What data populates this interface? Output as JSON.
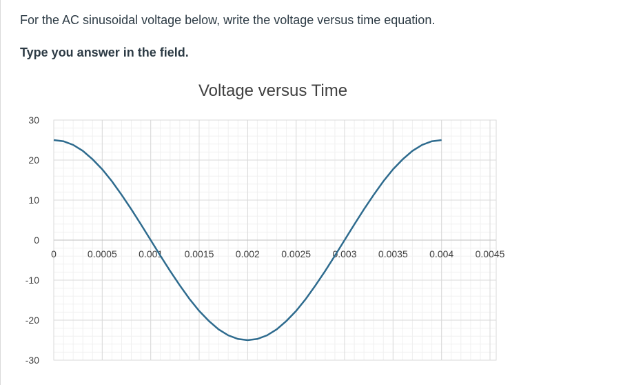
{
  "question": {
    "text": "For the AC sinusoidal voltage below, write the voltage versus time equation.",
    "instruction": "Type you answer in the field."
  },
  "chart_data": {
    "type": "line",
    "title": "Voltage versus Time",
    "xlabel": "",
    "ylabel": "",
    "xlim": [
      0,
      0.0045
    ],
    "ylim": [
      -30,
      30
    ],
    "x_ticks": [
      0,
      0.0005,
      0.001,
      0.0015,
      0.002,
      0.0025,
      0.003,
      0.0035,
      0.004,
      0.0045
    ],
    "x_tick_labels": [
      "0",
      "0.0005",
      "0.001",
      "0.0015",
      "0.002",
      "0.0025",
      "0.003",
      "0.0035",
      "0.004",
      "0.0045"
    ],
    "y_ticks": [
      30,
      20,
      10,
      0,
      -10,
      -20,
      -30
    ],
    "y_tick_labels": [
      "30",
      "20",
      "10",
      "0",
      "-10",
      "-20",
      "-30"
    ],
    "grid": true,
    "line_color": "#2e6b8e",
    "series": [
      {
        "x": [
          0,
          0.0001,
          0.0002,
          0.0003,
          0.0004,
          0.0005,
          0.0006,
          0.0007,
          0.0008,
          0.0009,
          0.001,
          0.0011,
          0.0012,
          0.0013,
          0.0014,
          0.0015,
          0.0016,
          0.0017,
          0.0018,
          0.0019,
          0.002,
          0.0021,
          0.0022,
          0.0023,
          0.0024,
          0.0025,
          0.0026,
          0.0027,
          0.0028,
          0.0029,
          0.003,
          0.0031,
          0.0032,
          0.0033,
          0.0034,
          0.0035,
          0.0036,
          0.0037,
          0.0038,
          0.0039,
          0.004
        ],
        "y": [
          25,
          24.7,
          23.8,
          22.3,
          20.2,
          17.7,
          14.7,
          11.3,
          7.7,
          3.9,
          0,
          -3.9,
          -7.7,
          -11.3,
          -14.7,
          -17.7,
          -20.2,
          -22.3,
          -23.8,
          -24.7,
          -25,
          -24.7,
          -23.8,
          -22.3,
          -20.2,
          -17.7,
          -14.7,
          -11.3,
          -7.7,
          -3.9,
          0,
          3.9,
          7.7,
          11.3,
          14.7,
          17.7,
          20.2,
          22.3,
          23.8,
          24.7,
          25
        ]
      }
    ]
  }
}
